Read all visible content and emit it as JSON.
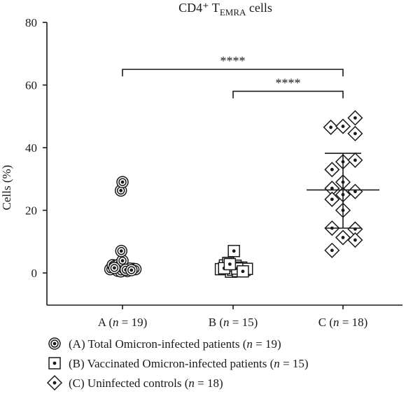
{
  "chart_data": {
    "type": "scatter",
    "title": "CD4⁺ T",
    "title_subscript": "EMRA",
    "title_suffix": " cells",
    "ylabel": "Cells (%)",
    "xlabel": "",
    "ylim": [
      0,
      80
    ],
    "yticks": [
      0,
      20,
      40,
      60,
      80
    ],
    "grid": false,
    "legend_position": "bottom-left",
    "categories": [
      {
        "prefix": "A (",
        "n": "n",
        "suffix": " = 19)"
      },
      {
        "prefix": "B (",
        "n": "n",
        "suffix": " = 15)"
      },
      {
        "prefix": "C (",
        "n": "n",
        "suffix": " = 18)"
      }
    ],
    "series": [
      {
        "name": "(A) Total Omicron-infected patients (n = 19)",
        "legend_prefix": "(A) Total Omicron-infected patients (",
        "legend_suffix": " = 19)",
        "marker": "circle",
        "points": [
          {
            "dx": -0.3,
            "y": 1.2
          },
          {
            "dx": -0.24,
            "y": 2.5
          },
          {
            "dx": -0.18,
            "y": 2.2
          },
          {
            "dx": -0.12,
            "y": 0.7
          },
          {
            "dx": -0.04,
            "y": 0.5
          },
          {
            "dx": 0.04,
            "y": 1.5
          },
          {
            "dx": 0.12,
            "y": 0.6
          },
          {
            "dx": 0.2,
            "y": 1.1
          },
          {
            "dx": 0.26,
            "y": 1.3
          },
          {
            "dx": 0.32,
            "y": 1.2
          },
          {
            "dx": -0.1,
            "y": 2.6
          },
          {
            "dx": 0.0,
            "y": 3.9
          },
          {
            "dx": -0.03,
            "y": 7.0
          },
          {
            "dx": -0.04,
            "y": 26.3
          },
          {
            "dx": 0.0,
            "y": 29.0
          },
          {
            "dx": 0.18,
            "y": 1.4
          },
          {
            "dx": -0.2,
            "y": 1.6
          },
          {
            "dx": 0.08,
            "y": 1.0
          },
          {
            "dx": 0.22,
            "y": 0.9
          }
        ]
      },
      {
        "name": "(B) Vaccinated Omicron-infected patients (n = 15)",
        "legend_prefix": "(B) Vaccinated Omicron-infected patients (",
        "legend_suffix": " = 15)",
        "marker": "square",
        "points": [
          {
            "dx": -0.3,
            "y": 1.2
          },
          {
            "dx": -0.2,
            "y": 2.4
          },
          {
            "dx": -0.12,
            "y": 3.2
          },
          {
            "dx": -0.05,
            "y": 0.4
          },
          {
            "dx": 0.0,
            "y": 1.0
          },
          {
            "dx": 0.06,
            "y": 2.3
          },
          {
            "dx": 0.12,
            "y": 0.6
          },
          {
            "dx": 0.2,
            "y": 1.7
          },
          {
            "dx": 0.28,
            "y": 1.0
          },
          {
            "dx": 0.34,
            "y": 1.3
          },
          {
            "dx": 0.02,
            "y": 7.0
          },
          {
            "dx": -0.22,
            "y": 1.5
          },
          {
            "dx": 0.1,
            "y": 1.4
          },
          {
            "dx": 0.24,
            "y": 0.5
          },
          {
            "dx": -0.08,
            "y": 2.8
          }
        ]
      },
      {
        "name": "(C) Uninfected controls (n = 18)",
        "legend_prefix": "(C) Uninfected controls (",
        "legend_suffix": " = 18)",
        "marker": "diamond",
        "points": [
          {
            "dx": -0.3,
            "y": 46.5
          },
          {
            "dx": 0.0,
            "y": 46.8
          },
          {
            "dx": 0.3,
            "y": 49.5
          },
          {
            "dx": 0.3,
            "y": 44.5
          },
          {
            "dx": -0.27,
            "y": 33.0
          },
          {
            "dx": 0.0,
            "y": 35.5
          },
          {
            "dx": 0.3,
            "y": 36.0
          },
          {
            "dx": -0.27,
            "y": 27.0
          },
          {
            "dx": 0.0,
            "y": 29.0
          },
          {
            "dx": 0.3,
            "y": 26.0
          },
          {
            "dx": -0.27,
            "y": 23.5
          },
          {
            "dx": 0.0,
            "y": 25.0
          },
          {
            "dx": 0.0,
            "y": 20.0
          },
          {
            "dx": -0.27,
            "y": 14.3
          },
          {
            "dx": 0.3,
            "y": 14.0
          },
          {
            "dx": 0.0,
            "y": 11.3
          },
          {
            "dx": 0.3,
            "y": 10.5
          },
          {
            "dx": -0.27,
            "y": 7.2
          }
        ]
      }
    ],
    "error_bars": [
      {
        "category_index": 2,
        "center": 26.5,
        "upper": 38.2,
        "lower": 14.3
      }
    ],
    "significance": [
      {
        "from": 0,
        "to": 2,
        "y": 65,
        "label": "****"
      },
      {
        "from": 1,
        "to": 2,
        "y": 58,
        "label": "****"
      }
    ],
    "colors": {
      "ink": "#1a1a1a",
      "fill": "#ffffff"
    }
  }
}
